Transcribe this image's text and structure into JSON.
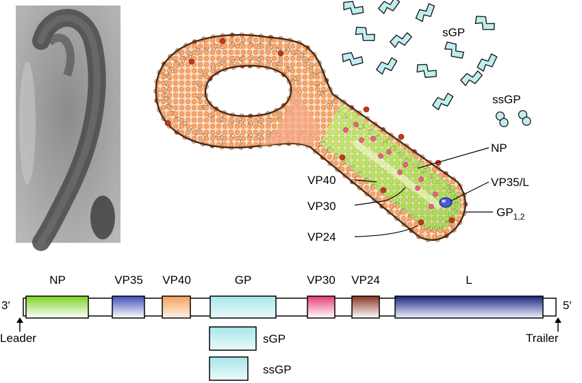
{
  "virion_labels": {
    "sgp": "sGP",
    "ssgp": "ssGP",
    "np": "NP",
    "vp40": "VP40",
    "vp35l": "VP35/L",
    "vp30": "VP30",
    "gp_main": "GP",
    "gp_sub": "1,2",
    "vp24": "VP24"
  },
  "genome": {
    "end_left": "3′",
    "end_right": "5′",
    "leader": "Leader",
    "trailer": "Trailer",
    "genes": [
      {
        "name": "NP",
        "color": "#7ed321"
      },
      {
        "name": "VP35",
        "color": "#3f4fb8"
      },
      {
        "name": "VP40",
        "color": "#f5a15a"
      },
      {
        "name": "GP",
        "color": "#a8e6ea"
      },
      {
        "name": "VP30",
        "color": "#e83c78"
      },
      {
        "name": "VP24",
        "color": "#8a3420"
      },
      {
        "name": "L",
        "color": "#1a237e"
      }
    ],
    "products": [
      {
        "name": "sGP",
        "color": "#a8e6ea"
      },
      {
        "name": "ssGP",
        "color": "#a8e6ea"
      }
    ]
  },
  "colors": {
    "membrane": "#f2a05e",
    "membrane_dark": "#c44a1e",
    "nucleocapsid": "#a4e24c",
    "glycoprotein": "#d7f2f3"
  }
}
